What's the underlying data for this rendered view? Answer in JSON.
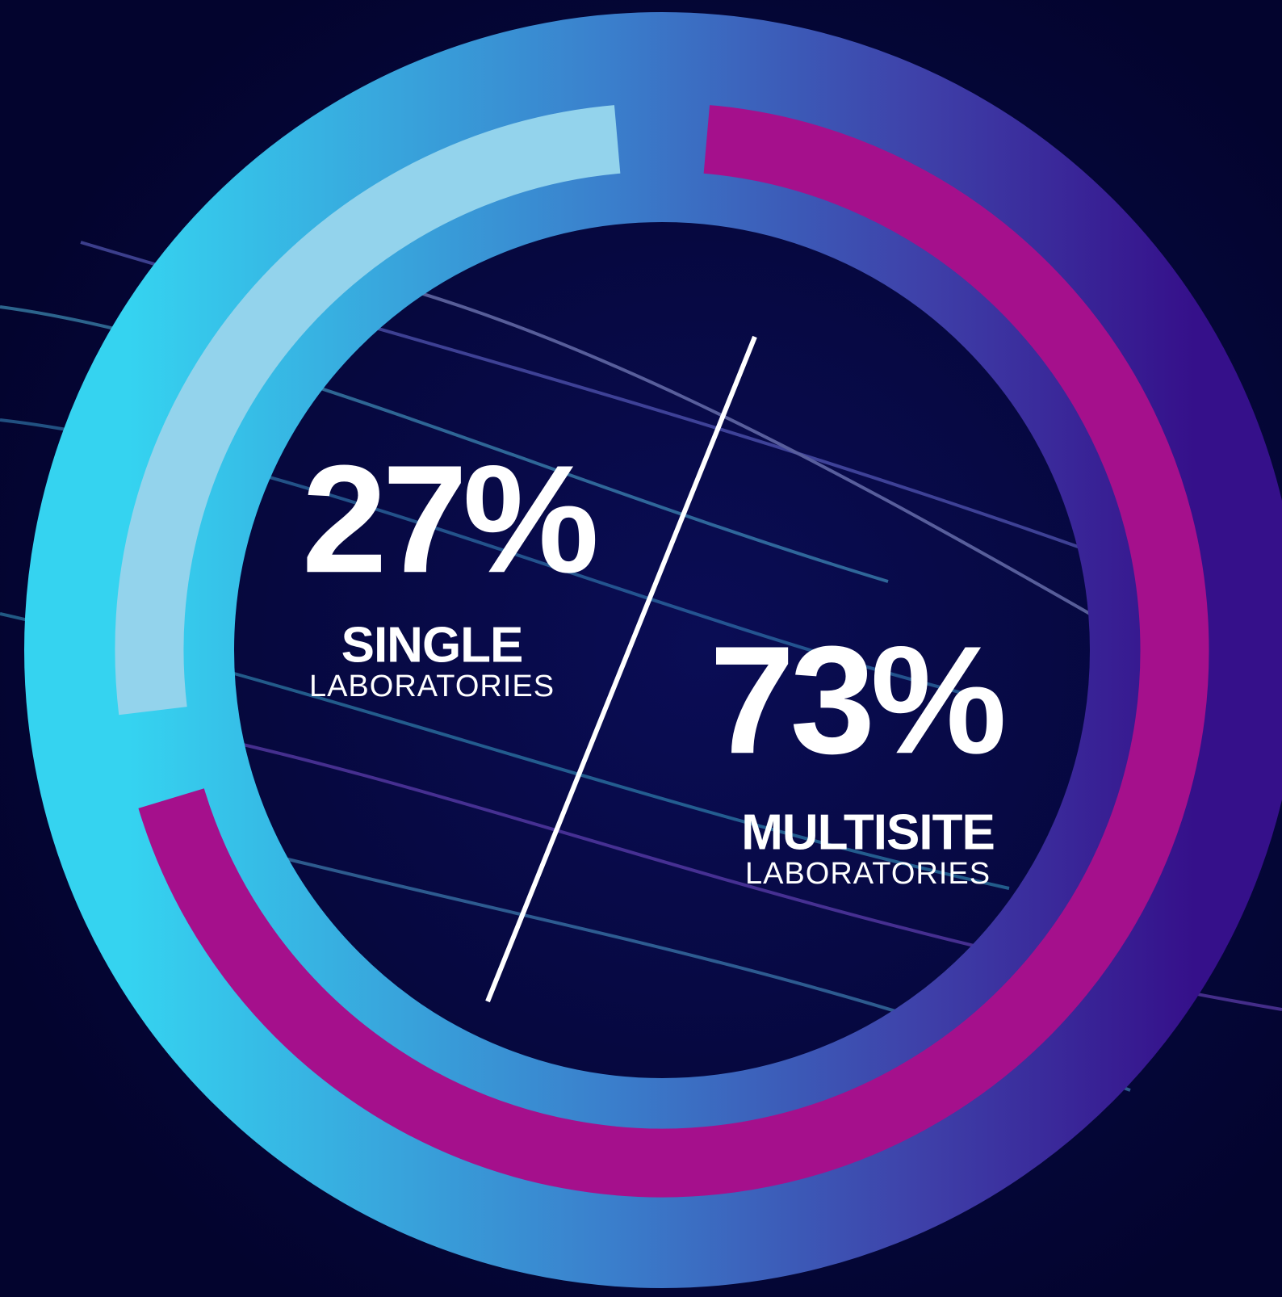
{
  "chart_data": {
    "type": "donut",
    "categories": [
      "SINGLE",
      "MULTISITE"
    ],
    "category_subtitles": [
      "LABORATORIES",
      "LABORATORIES"
    ],
    "values": [
      27,
      73
    ],
    "value_labels": [
      "27%",
      "73%"
    ],
    "colors": [
      "#93d3ec",
      "#a5108c"
    ]
  }
}
